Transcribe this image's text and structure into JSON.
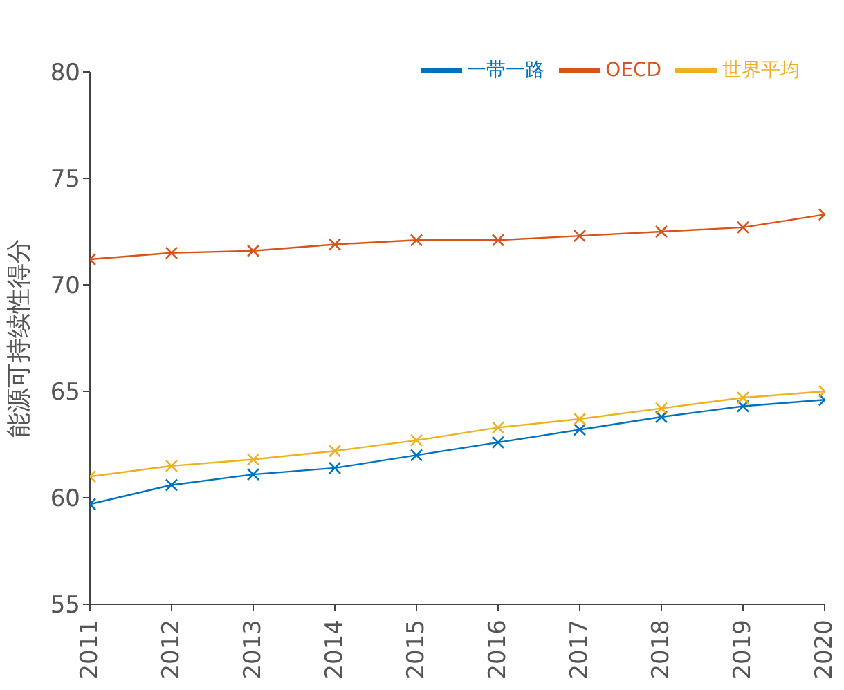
{
  "chart_data": {
    "type": "line",
    "ylabel": "能源可持续性得分",
    "x": [
      2011,
      2012,
      2013,
      2014,
      2015,
      2016,
      2017,
      2018,
      2019,
      2020
    ],
    "xlim": [
      2011,
      2020
    ],
    "xticks": [
      2011,
      2012,
      2013,
      2014,
      2015,
      2016,
      2017,
      2018,
      2019,
      2020
    ],
    "ylim": [
      55,
      80
    ],
    "yticks": [
      55,
      60,
      65,
      70,
      75,
      80
    ],
    "grid": false,
    "legend": "top right",
    "marker": "cross",
    "line_style": "solid",
    "series": [
      {
        "name": "一带一路",
        "color": "#0072bd",
        "values": [
          59.7,
          60.6,
          61.1,
          61.4,
          62.0,
          62.6,
          63.2,
          63.8,
          64.3,
          64.6
        ]
      },
      {
        "name": "OECD",
        "color": "#d95319",
        "values": [
          71.2,
          71.5,
          71.6,
          71.9,
          72.1,
          72.1,
          72.3,
          72.5,
          72.7,
          73.3
        ]
      },
      {
        "name": "世界平均",
        "color": "#edb120",
        "values": [
          61.0,
          61.5,
          61.8,
          62.2,
          62.7,
          63.3,
          63.7,
          64.2,
          64.7,
          65.0
        ]
      }
    ]
  }
}
